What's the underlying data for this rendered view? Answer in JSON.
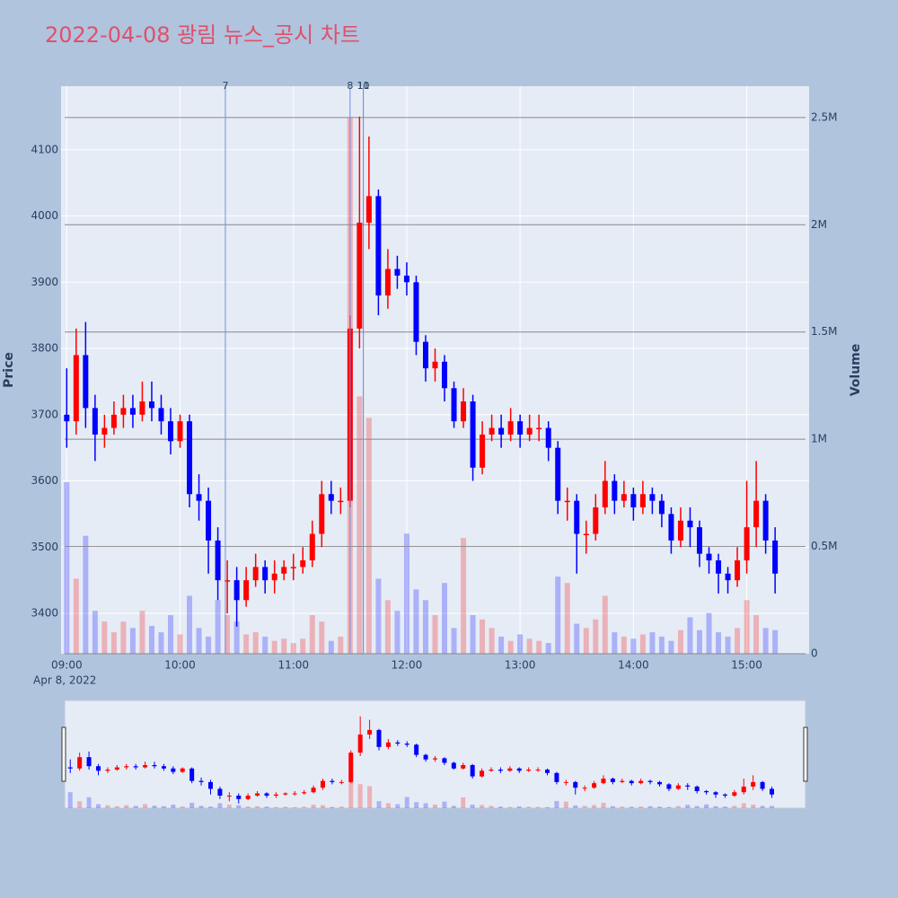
{
  "chart_data": {
    "type": "candlestick",
    "title": "2022-04-08 광림 뉴스_공시 차트",
    "ylabel": "Price",
    "y2label": "Volume",
    "date_label": "Apr 8, 2022",
    "increasing_color": "#ff0000",
    "decreasing_color": "#0000ff",
    "grid": true,
    "xlim": [
      "08:57",
      "15:33"
    ],
    "xticks": [
      "09:00",
      "10:00",
      "11:00",
      "12:00",
      "13:00",
      "14:00",
      "15:00"
    ],
    "ylim": [
      3339,
      4196
    ],
    "yticks": [
      3400,
      3500,
      3600,
      3700,
      3800,
      3900,
      4000,
      4100
    ],
    "y2lim": [
      0,
      2646000
    ],
    "y2ticks": [
      0,
      {
        "value": 500000,
        "label": "0.5M"
      },
      {
        "value": 1000000,
        "label": "1M"
      },
      {
        "value": 1500000,
        "label": "1.5M"
      },
      {
        "value": 2000000,
        "label": "2M"
      },
      {
        "value": 2500000,
        "label": "2.5M"
      }
    ],
    "annotations": [
      {
        "label": "7",
        "x": "10:24"
      },
      {
        "label": "8",
        "x": "11:30"
      },
      {
        "label": "10",
        "x": "11:37"
      },
      {
        "label": "11",
        "x": "11:37"
      }
    ],
    "x": [
      "09:00",
      "09:05",
      "09:10",
      "09:15",
      "09:20",
      "09:25",
      "09:30",
      "09:35",
      "09:40",
      "09:45",
      "09:50",
      "09:55",
      "10:00",
      "10:05",
      "10:10",
      "10:15",
      "10:20",
      "10:25",
      "10:30",
      "10:35",
      "10:40",
      "10:45",
      "10:50",
      "10:55",
      "11:00",
      "11:05",
      "11:10",
      "11:15",
      "11:20",
      "11:25",
      "11:30",
      "11:35",
      "11:40",
      "11:45",
      "11:50",
      "11:55",
      "12:00",
      "12:05",
      "12:10",
      "12:15",
      "12:20",
      "12:25",
      "12:30",
      "12:35",
      "12:40",
      "12:45",
      "12:50",
      "12:55",
      "13:00",
      "13:05",
      "13:10",
      "13:15",
      "13:20",
      "13:25",
      "13:30",
      "13:35",
      "13:40",
      "13:45",
      "13:50",
      "13:55",
      "14:00",
      "14:05",
      "14:10",
      "14:15",
      "14:20",
      "14:25",
      "14:30",
      "14:35",
      "14:40",
      "14:45",
      "14:50",
      "14:55",
      "15:00",
      "15:05",
      "15:10",
      "15:15"
    ],
    "open": [
      3700,
      3690,
      3790,
      3710,
      3670,
      3680,
      3700,
      3710,
      3700,
      3720,
      3710,
      3690,
      3660,
      3690,
      3580,
      3570,
      3510,
      3450,
      3450,
      3420,
      3450,
      3470,
      3450,
      3460,
      3470,
      3470,
      3480,
      3520,
      3580,
      3570,
      3570,
      3830,
      3990,
      4030,
      3880,
      3920,
      3910,
      3900,
      3810,
      3770,
      3780,
      3740,
      3690,
      3720,
      3620,
      3670,
      3680,
      3670,
      3690,
      3670,
      3680,
      3680,
      3650,
      3570,
      3570,
      3520,
      3520,
      3560,
      3600,
      3570,
      3580,
      3560,
      3580,
      3570,
      3550,
      3510,
      3540,
      3530,
      3490,
      3480,
      3460,
      3450,
      3480,
      3530,
      3570,
      3510
    ],
    "high": [
      3770,
      3830,
      3840,
      3730,
      3700,
      3720,
      3730,
      3730,
      3750,
      3750,
      3730,
      3710,
      3700,
      3700,
      3610,
      3590,
      3530,
      3480,
      3470,
      3470,
      3490,
      3480,
      3480,
      3480,
      3490,
      3500,
      3540,
      3600,
      3600,
      3590,
      3850,
      4150,
      4120,
      4040,
      3950,
      3940,
      3930,
      3910,
      3820,
      3800,
      3790,
      3750,
      3740,
      3730,
      3690,
      3700,
      3700,
      3710,
      3700,
      3700,
      3700,
      3690,
      3660,
      3590,
      3580,
      3540,
      3580,
      3630,
      3610,
      3600,
      3590,
      3600,
      3590,
      3580,
      3560,
      3560,
      3560,
      3540,
      3500,
      3490,
      3470,
      3500,
      3600,
      3630,
      3580,
      3530
    ],
    "low": [
      3650,
      3670,
      3680,
      3630,
      3650,
      3670,
      3680,
      3680,
      3690,
      3690,
      3670,
      3640,
      3650,
      3560,
      3540,
      3460,
      3420,
      3400,
      3380,
      3410,
      3440,
      3430,
      3430,
      3450,
      3450,
      3460,
      3470,
      3500,
      3550,
      3550,
      3560,
      3800,
      3950,
      3850,
      3860,
      3890,
      3880,
      3790,
      3750,
      3750,
      3720,
      3680,
      3680,
      3600,
      3610,
      3660,
      3650,
      3660,
      3650,
      3660,
      3660,
      3630,
      3550,
      3540,
      3460,
      3490,
      3510,
      3550,
      3550,
      3560,
      3540,
      3550,
      3550,
      3530,
      3490,
      3500,
      3500,
      3470,
      3460,
      3430,
      3430,
      3440,
      3460,
      3500,
      3490,
      3430
    ],
    "close": [
      3690,
      3790,
      3710,
      3670,
      3680,
      3700,
      3710,
      3700,
      3720,
      3710,
      3690,
      3660,
      3690,
      3580,
      3570,
      3510,
      3450,
      3450,
      3420,
      3450,
      3470,
      3450,
      3460,
      3470,
      3470,
      3480,
      3520,
      3580,
      3570,
      3570,
      3830,
      3990,
      4030,
      3880,
      3920,
      3910,
      3900,
      3810,
      3770,
      3780,
      3740,
      3690,
      3720,
      3620,
      3670,
      3680,
      3670,
      3690,
      3670,
      3680,
      3680,
      3650,
      3570,
      3570,
      3520,
      3520,
      3560,
      3600,
      3570,
      3580,
      3560,
      3580,
      3570,
      3550,
      3510,
      3540,
      3530,
      3490,
      3480,
      3460,
      3450,
      3480,
      3530,
      3570,
      3510,
      3460
    ],
    "volume": [
      800000,
      350000,
      550000,
      200000,
      150000,
      100000,
      150000,
      120000,
      200000,
      130000,
      100000,
      180000,
      90000,
      270000,
      120000,
      80000,
      250000,
      180000,
      150000,
      90000,
      100000,
      80000,
      60000,
      70000,
      50000,
      70000,
      180000,
      150000,
      60000,
      80000,
      2500000,
      1200000,
      1100000,
      350000,
      250000,
      200000,
      560000,
      300000,
      250000,
      180000,
      330000,
      120000,
      540000,
      180000,
      160000,
      120000,
      80000,
      60000,
      90000,
      70000,
      60000,
      50000,
      360000,
      330000,
      140000,
      120000,
      160000,
      270000,
      100000,
      80000,
      70000,
      90000,
      100000,
      80000,
      60000,
      110000,
      170000,
      110000,
      190000,
      100000,
      80000,
      120000,
      250000,
      180000,
      120000,
      110000
    ]
  }
}
